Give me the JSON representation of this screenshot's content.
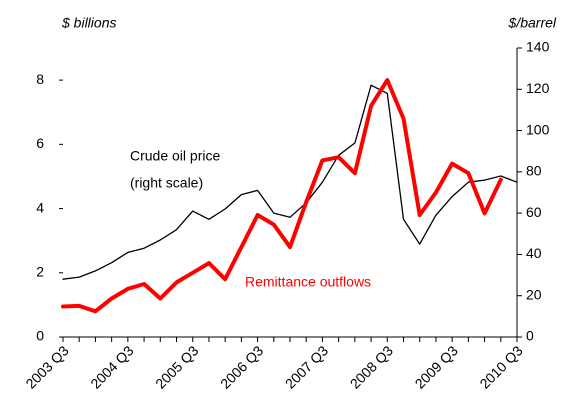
{
  "chart_data": {
    "type": "line",
    "y_label": "$ billions",
    "y2_label": "$/barrel",
    "annotations": [
      "Crude oil price",
      "(right scale)"
    ],
    "categories": [
      "2003 Q3",
      null,
      null,
      null,
      "2004 Q3",
      null,
      null,
      null,
      "2005 Q3",
      null,
      null,
      null,
      "2006 Q3",
      null,
      null,
      null,
      "2007 Q3",
      null,
      null,
      null,
      "2008 Q3",
      null,
      null,
      null,
      "2009 Q3",
      null,
      null,
      null,
      "2010 Q3"
    ],
    "ylim": [
      0,
      9
    ],
    "yticks": [
      0,
      2,
      4,
      6,
      8
    ],
    "y2lim": [
      0,
      140
    ],
    "y2ticks": [
      0,
      20,
      40,
      60,
      80,
      100,
      120,
      140
    ],
    "series": [
      {
        "name": "Remittance outflows",
        "color": "#ff0000",
        "axis": "y",
        "values": [
          0.95,
          0.97,
          0.8,
          1.2,
          1.5,
          1.65,
          1.2,
          1.7,
          2.0,
          2.3,
          1.8,
          2.8,
          3.8,
          3.5,
          2.8,
          4.2,
          5.5,
          5.6,
          5.1,
          7.2,
          8.0,
          6.8,
          3.8,
          4.5,
          5.4,
          5.1,
          3.85,
          4.9,
          null
        ]
      },
      {
        "name": "Crude oil price",
        "color": "#000000",
        "axis": "y2",
        "values": [
          28,
          29,
          32,
          36,
          41,
          43,
          47,
          52,
          61,
          57,
          62,
          69,
          71,
          60,
          58,
          65,
          75,
          88,
          94,
          122,
          118,
          57,
          45,
          59,
          68,
          75,
          76,
          78,
          75
        ]
      }
    ]
  }
}
